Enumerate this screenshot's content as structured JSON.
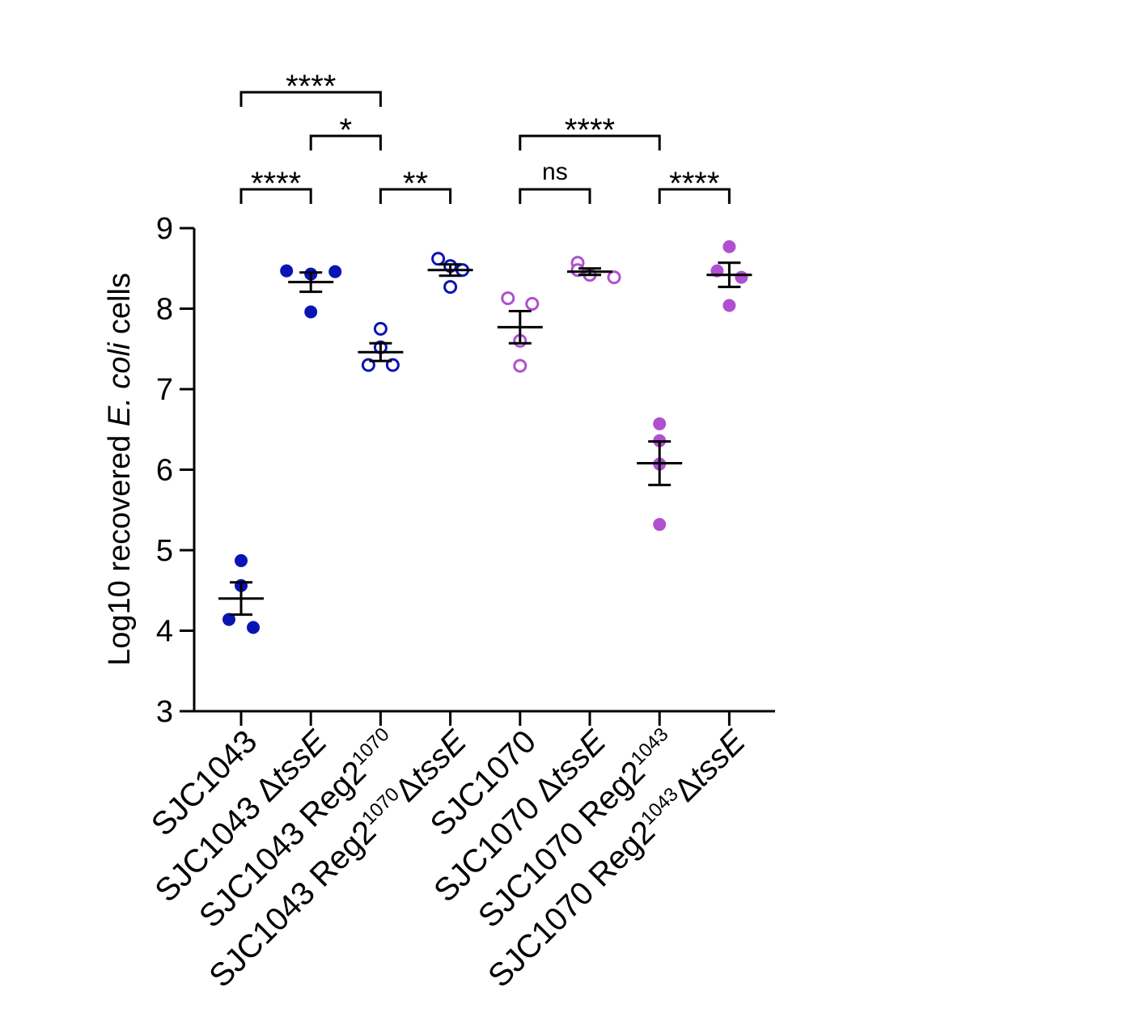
{
  "chart_data": {
    "type": "scatter",
    "title": "",
    "ylabel": {
      "prefix": "Log10 recovered ",
      "italic": "E. coli",
      "suffix": " cells"
    },
    "xlabel": "",
    "ylim": [
      3,
      9
    ],
    "yticks": [
      "3",
      "4",
      "5",
      "6",
      "7",
      "8",
      "9"
    ],
    "categories": [
      {
        "parts": [
          {
            "t": "SJC1043",
            "s": "n"
          }
        ]
      },
      {
        "parts": [
          {
            "t": "SJC1043 Δ",
            "s": "n"
          },
          {
            "t": "tssE",
            "s": "i"
          }
        ]
      },
      {
        "parts": [
          {
            "t": "SJC1043 Reg2",
            "s": "n"
          },
          {
            "t": "1070",
            "s": "sup"
          }
        ]
      },
      {
        "parts": [
          {
            "t": "SJC1043 Reg2",
            "s": "n"
          },
          {
            "t": "1070",
            "s": "sup"
          },
          {
            "t": "Δ",
            "s": "n"
          },
          {
            "t": "tssE",
            "s": "i"
          }
        ]
      },
      {
        "parts": [
          {
            "t": "SJC1070",
            "s": "n"
          }
        ]
      },
      {
        "parts": [
          {
            "t": "SJC1070 Δ",
            "s": "n"
          },
          {
            "t": "tssE",
            "s": "i"
          }
        ]
      },
      {
        "parts": [
          {
            "t": "SJC1070 Reg2",
            "s": "n"
          },
          {
            "t": "1043",
            "s": "sup"
          }
        ]
      },
      {
        "parts": [
          {
            "t": "SJC1070 Reg2",
            "s": "n"
          },
          {
            "t": "1043",
            "s": "sup"
          },
          {
            "t": "Δ",
            "s": "n"
          },
          {
            "t": "tssE",
            "s": "i"
          }
        ]
      }
    ],
    "colors": {
      "blue": "#0a14b4",
      "purple": "#b050d0"
    },
    "groups": [
      {
        "name": "SJC1043",
        "color": "blue",
        "filled": true,
        "points": [
          4.87,
          4.56,
          4.14,
          4.04
        ],
        "mean": 4.4,
        "sem": 0.2
      },
      {
        "name": "SJC1043 ΔtssE",
        "color": "blue",
        "filled": true,
        "points": [
          8.47,
          8.43,
          8.46,
          7.96
        ],
        "mean": 8.33,
        "sem": 0.12
      },
      {
        "name": "SJC1043 Reg2^1070",
        "color": "blue",
        "filled": false,
        "points": [
          7.75,
          7.52,
          7.3,
          7.3
        ],
        "mean": 7.46,
        "sem": 0.11
      },
      {
        "name": "SJC1043 Reg2^1070 ΔtssE",
        "color": "blue",
        "filled": false,
        "points": [
          8.62,
          8.53,
          8.48,
          8.27
        ],
        "mean": 8.48,
        "sem": 0.07
      },
      {
        "name": "SJC1070",
        "color": "purple",
        "filled": false,
        "points": [
          8.13,
          8.06,
          7.6,
          7.29
        ],
        "mean": 7.77,
        "sem": 0.2
      },
      {
        "name": "SJC1070 ΔtssE",
        "color": "purple",
        "filled": false,
        "points": [
          8.57,
          8.48,
          8.42,
          8.39
        ],
        "mean": 8.46,
        "sem": 0.04
      },
      {
        "name": "SJC1070 Reg2^1043",
        "color": "purple",
        "filled": true,
        "points": [
          6.57,
          6.36,
          6.07,
          5.32
        ],
        "mean": 6.08,
        "sem": 0.27
      },
      {
        "name": "SJC1070 Reg2^1043 ΔtssE",
        "color": "purple",
        "filled": true,
        "points": [
          8.77,
          8.47,
          8.39,
          8.04
        ],
        "mean": 8.42,
        "sem": 0.15
      }
    ],
    "significance": [
      {
        "from": 0,
        "to": 2,
        "level": 3,
        "label": "****"
      },
      {
        "from": 1,
        "to": 2,
        "level": 2,
        "label": "*"
      },
      {
        "from": 0,
        "to": 1,
        "level": 1,
        "label": "****"
      },
      {
        "from": 2,
        "to": 3,
        "level": 1,
        "label": "**"
      },
      {
        "from": 4,
        "to": 6,
        "level": 2,
        "label": "****"
      },
      {
        "from": 4,
        "to": 5,
        "level": 1,
        "label": "ns"
      },
      {
        "from": 6,
        "to": 7,
        "level": 1,
        "label": "****"
      }
    ]
  }
}
